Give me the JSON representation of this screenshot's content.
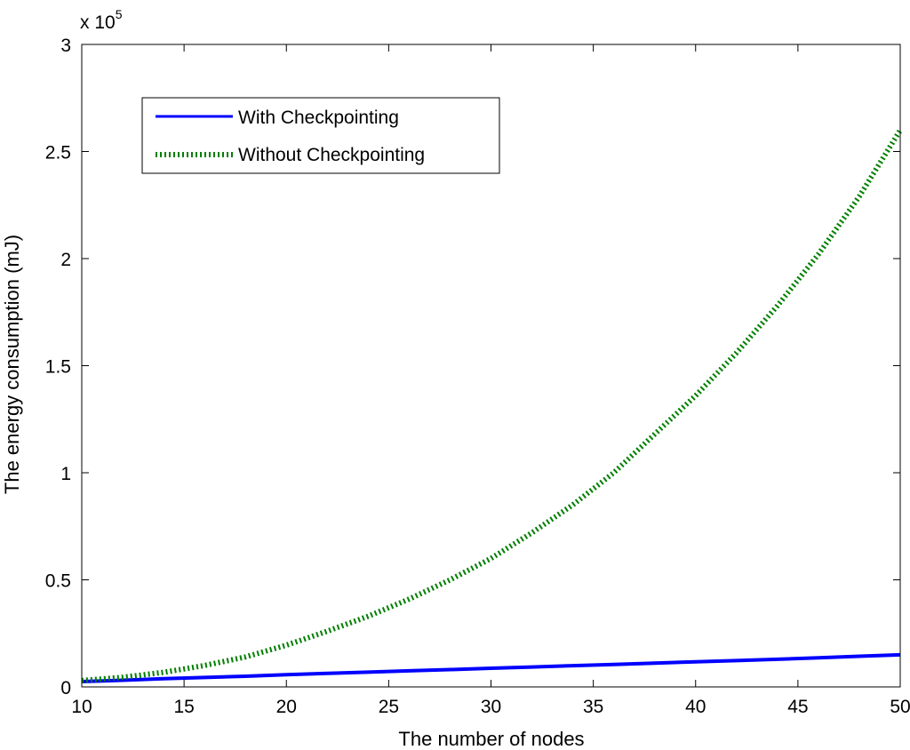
{
  "chart_data": {
    "type": "line",
    "xlabel": "The number of nodes",
    "ylabel": "The energy consumption (mJ)",
    "y_multiplier_label": "x 10",
    "y_multiplier_exponent": "5",
    "xlim": [
      10,
      50
    ],
    "ylim": [
      0,
      3
    ],
    "x_ticks": [
      10,
      15,
      20,
      25,
      30,
      35,
      40,
      45,
      50
    ],
    "x_tick_labels": [
      "10",
      "15",
      "20",
      "25",
      "30",
      "35",
      "40",
      "45",
      "50"
    ],
    "y_ticks": [
      0,
      0.5,
      1,
      1.5,
      2,
      2.5,
      3
    ],
    "y_tick_labels": [
      "0",
      "0.5",
      "1",
      "1.5",
      "2",
      "2.5",
      "3"
    ],
    "grid": false,
    "legend_position": "top-left",
    "x": [
      10,
      12,
      14,
      16,
      18,
      20,
      22,
      24,
      26,
      28,
      30,
      32,
      34,
      36,
      38,
      40,
      42,
      44,
      46,
      48,
      50
    ],
    "series": [
      {
        "name": "With Checkpointing",
        "style": "solid",
        "color": "#0000ff",
        "values": [
          0.025,
          0.031,
          0.038,
          0.044,
          0.05,
          0.057,
          0.063,
          0.069,
          0.075,
          0.081,
          0.087,
          0.093,
          0.099,
          0.105,
          0.111,
          0.117,
          0.123,
          0.129,
          0.136,
          0.143,
          0.15
        ]
      },
      {
        "name": "Without Checkpointing",
        "style": "dotted",
        "color": "#007f00",
        "values": [
          0.03,
          0.045,
          0.068,
          0.1,
          0.14,
          0.195,
          0.26,
          0.33,
          0.41,
          0.5,
          0.6,
          0.72,
          0.85,
          1.0,
          1.18,
          1.36,
          1.56,
          1.78,
          2.02,
          2.29,
          2.6
        ]
      }
    ]
  }
}
